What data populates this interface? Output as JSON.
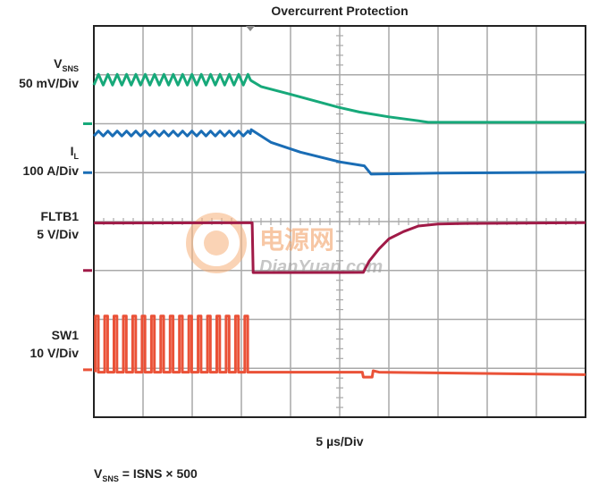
{
  "chart_data": {
    "type": "line",
    "title": "Overcurrent Protection",
    "xlabel": "5 µs/Div",
    "x_unit": "µs",
    "xlim": [
      0,
      50
    ],
    "x_divisions": 10,
    "y_divisions": 8,
    "grid": true,
    "trigger_time_us": 16,
    "footnote": {
      "main": "V",
      "sub": "SNS",
      "rest": " = ISNS × 500"
    },
    "series": [
      {
        "key": "vsns",
        "name_main": "V",
        "name_sub": "SNS",
        "scale": "50 mV/Div",
        "color": "#17a97a",
        "ground_div": 2.0,
        "ripple": {
          "t_end": 16,
          "period": 0.95,
          "center": 0.9,
          "amplitude": 0.22
        },
        "points": [
          [
            16,
            0.88
          ],
          [
            17,
            0.76
          ],
          [
            20,
            0.6
          ],
          [
            25,
            0.33
          ],
          [
            27,
            0.24
          ],
          [
            30,
            0.14
          ],
          [
            33,
            0.06
          ],
          [
            34,
            0.03
          ],
          [
            50,
            0.03
          ]
        ]
      },
      {
        "key": "il",
        "name_main": "I",
        "name_sub": "L",
        "scale": "100 A/Div",
        "color": "#1a6db5",
        "ground_div": 3.0,
        "ripple": {
          "t_end": 16,
          "period": 0.95,
          "center": 0.8,
          "amplitude": 0.1
        },
        "points": [
          [
            16,
            0.88
          ],
          [
            18,
            0.62
          ],
          [
            21,
            0.42
          ],
          [
            25,
            0.22
          ],
          [
            27.5,
            0.14
          ],
          [
            28.2,
            -0.03
          ],
          [
            35,
            -0.01
          ],
          [
            50,
            0.01
          ]
        ]
      },
      {
        "key": "fltb1",
        "name_main": "FLTB1",
        "name_sub": "",
        "scale": "5 V/Div",
        "color": "#a01a47",
        "ground_div": 5.0,
        "points": [
          [
            0,
            0.97
          ],
          [
            16.1,
            0.97
          ],
          [
            16.2,
            -0.04
          ],
          [
            27.4,
            -0.04
          ],
          [
            28,
            0.2
          ],
          [
            29,
            0.45
          ],
          [
            30,
            0.65
          ],
          [
            31.5,
            0.8
          ],
          [
            33,
            0.9
          ],
          [
            35,
            0.95
          ],
          [
            38,
            0.97
          ],
          [
            50,
            0.97
          ]
        ]
      },
      {
        "key": "sw1",
        "name_main": "SW1",
        "name_sub": "",
        "scale": "10 V/Div",
        "color": "#ea5238",
        "ground_div": 7.03,
        "pulses": {
          "t_end": 16,
          "period": 0.95,
          "width": 0.3,
          "high": 1.1,
          "low": -0.05
        },
        "points": [
          [
            16,
            -0.05
          ],
          [
            27.3,
            -0.05
          ],
          [
            27.4,
            -0.15
          ],
          [
            28.3,
            -0.15
          ],
          [
            28.4,
            -0.02
          ],
          [
            29,
            -0.05
          ],
          [
            50,
            -0.1
          ]
        ]
      }
    ]
  },
  "watermark": {
    "cn": "电源网",
    "en": "DianYuan.com"
  },
  "colors": {
    "grid": "#a9a9a9",
    "frame": "#222222",
    "watermark": "#f29b5c"
  }
}
